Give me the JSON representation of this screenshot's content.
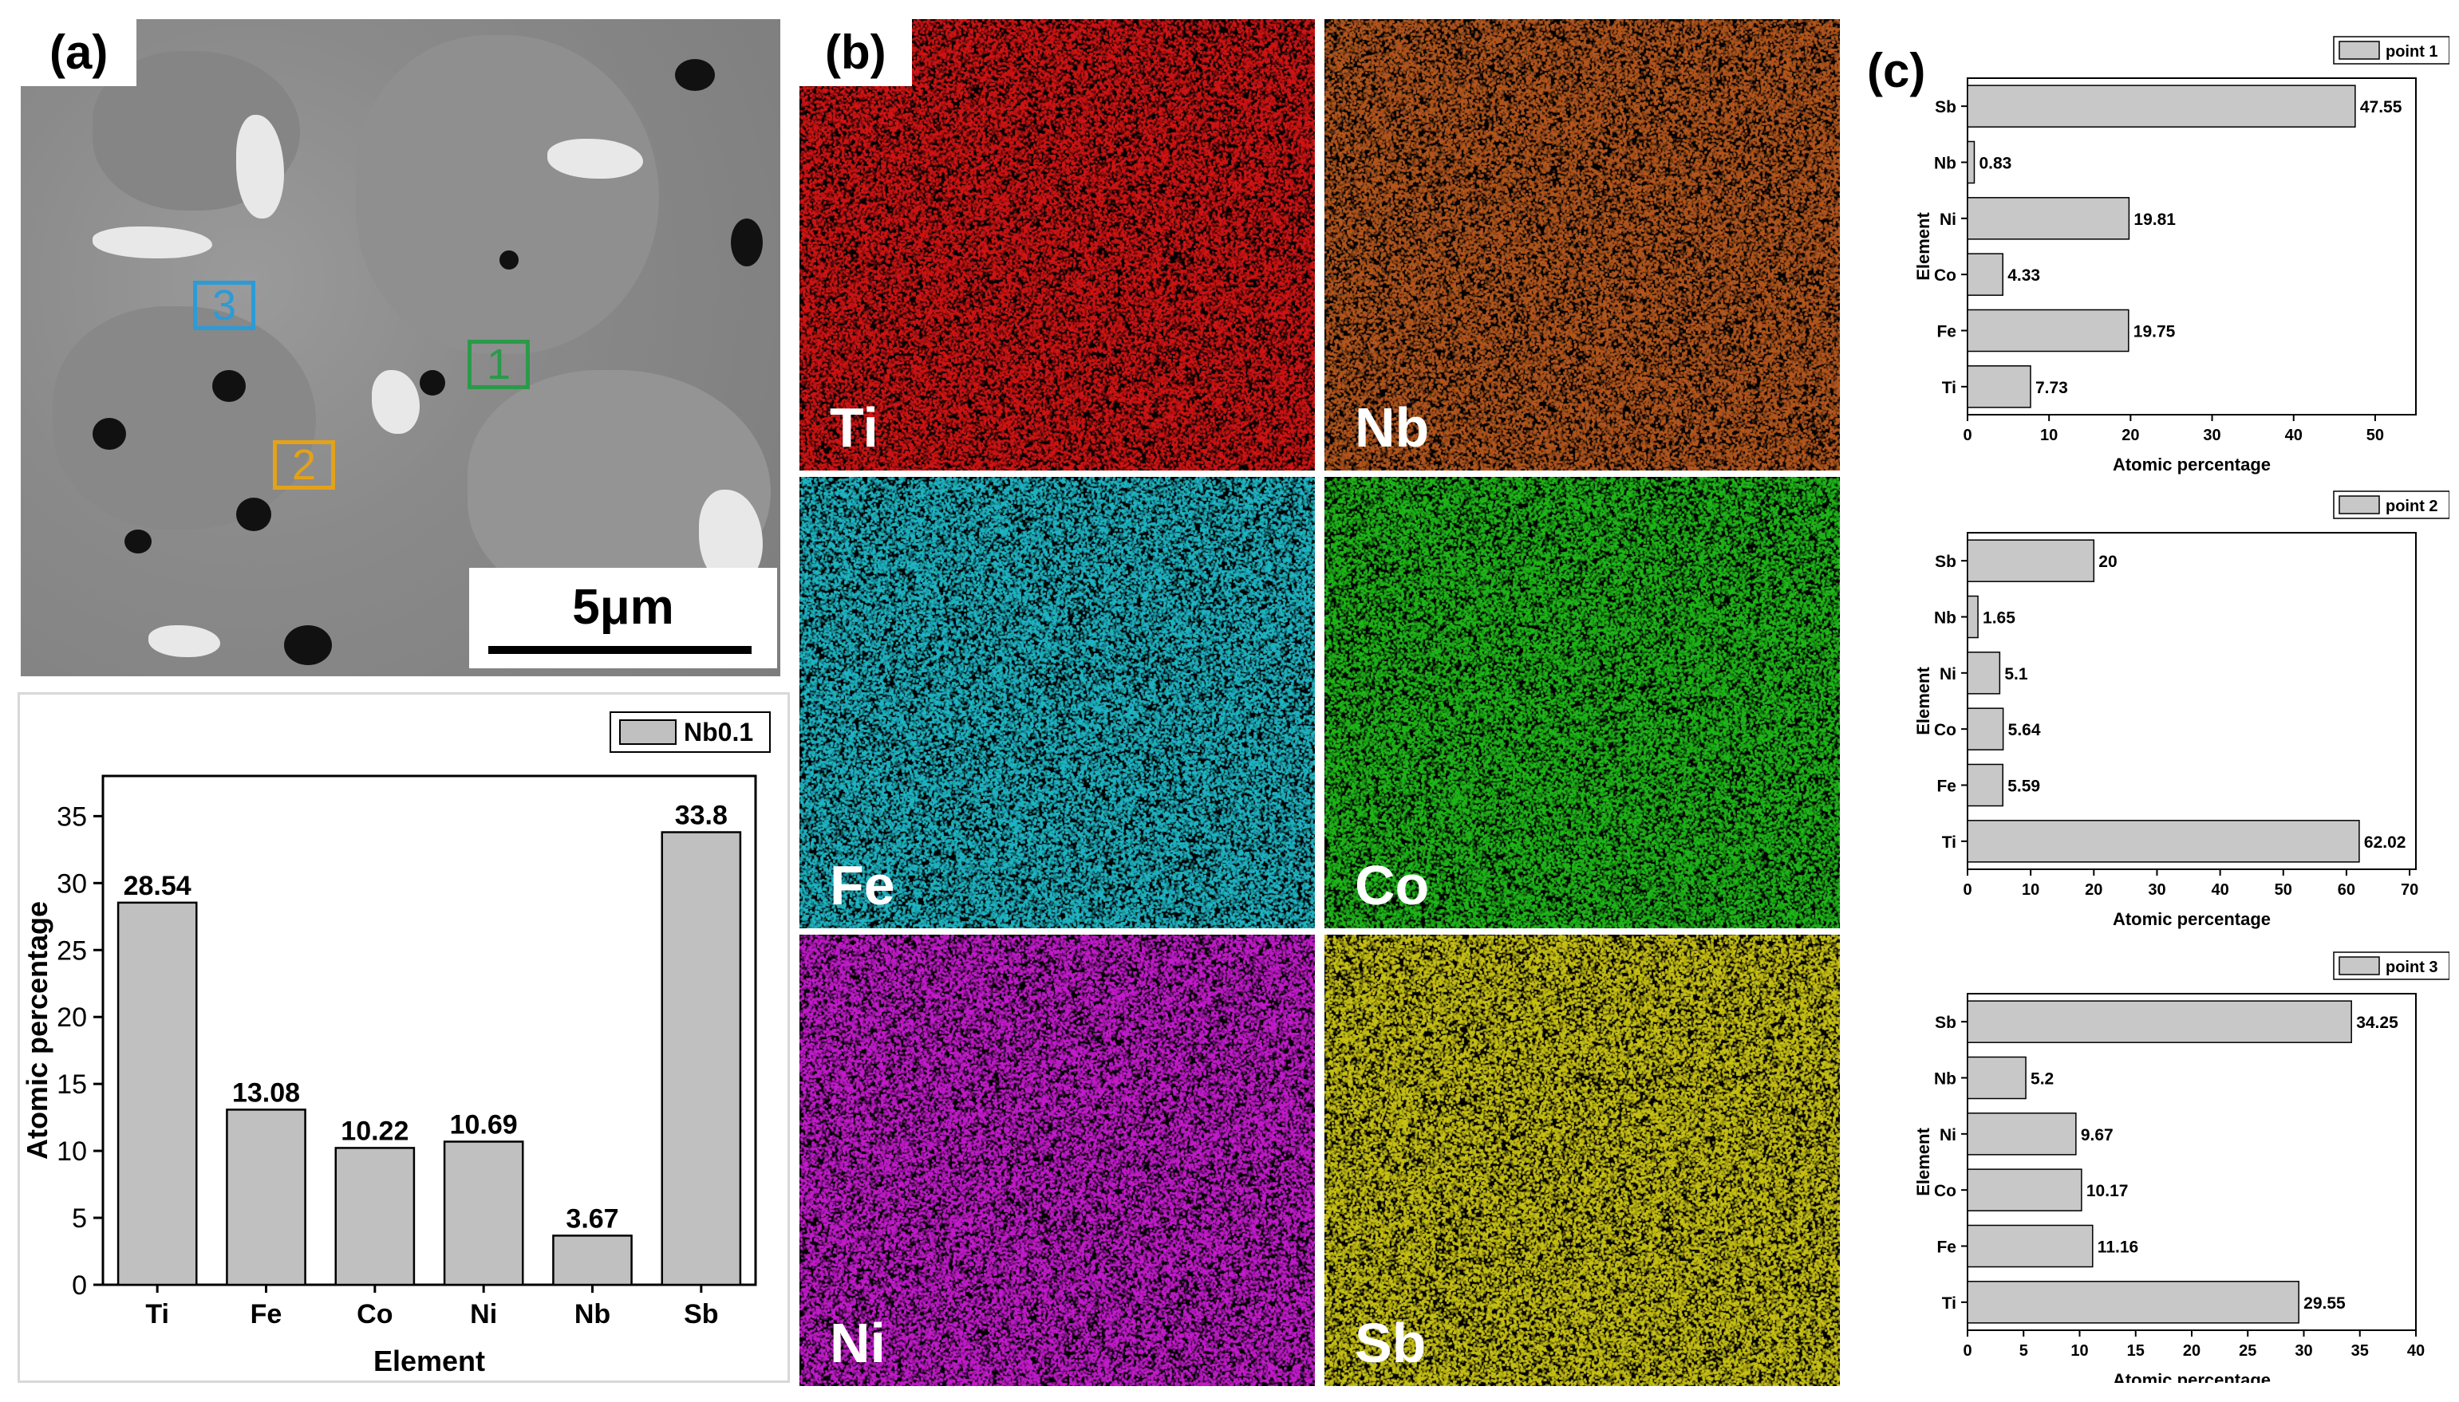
{
  "panel_a": {
    "label": "(a)",
    "scale_bar": "5μm",
    "points": [
      {
        "label": "3",
        "color": "#2c9bd6"
      },
      {
        "label": "1",
        "color": "#2a9a4a"
      },
      {
        "label": "2",
        "color": "#e3a21a"
      }
    ]
  },
  "panel_b": {
    "label": "(b)",
    "maps": [
      {
        "element": "Ti",
        "color": "#d21414"
      },
      {
        "element": "Nb",
        "color": "#b4571e"
      },
      {
        "element": "Fe",
        "color": "#1fb6c4"
      },
      {
        "element": "Co",
        "color": "#1fb81a"
      },
      {
        "element": "Ni",
        "color": "#c41ccc"
      },
      {
        "element": "Sb",
        "color": "#c8c214"
      }
    ]
  },
  "panel_c": {
    "label": "(c)"
  },
  "chart_data": [
    {
      "type": "bar",
      "legend": "Nb0.1",
      "categories": [
        "Ti",
        "Fe",
        "Co",
        "Ni",
        "Nb",
        "Sb"
      ],
      "values": [
        28.54,
        13.08,
        10.22,
        10.69,
        3.67,
        33.8
      ],
      "labels": [
        "28.54",
        "13.08",
        "10.22",
        "10.69",
        "3.67",
        "33.8"
      ],
      "xlabel": "Element",
      "ylabel": "Atomic percentage",
      "ylim": [
        0,
        38
      ],
      "yticks": [
        0,
        5,
        10,
        15,
        20,
        25,
        30,
        35
      ],
      "legend_position": "top-right"
    },
    {
      "type": "bar",
      "orientation": "horizontal",
      "legend": "point 1",
      "categories": [
        "Sb",
        "Nb",
        "Ni",
        "Co",
        "Fe",
        "Ti"
      ],
      "values": [
        47.55,
        0.83,
        19.81,
        4.33,
        19.75,
        7.73
      ],
      "labels": [
        "47.55",
        "0.83",
        "19.81",
        "4.33",
        "19.75",
        "7.73"
      ],
      "xlabel": "Atomic percentage",
      "ylabel": "Element",
      "xlim": [
        0,
        55
      ],
      "xticks": [
        0,
        10,
        20,
        30,
        40,
        50
      ],
      "legend_position": "top-right"
    },
    {
      "type": "bar",
      "orientation": "horizontal",
      "legend": "point 2",
      "categories": [
        "Sb",
        "Nb",
        "Ni",
        "Co",
        "Fe",
        "Ti"
      ],
      "values": [
        20,
        1.65,
        5.1,
        5.64,
        5.59,
        62.02
      ],
      "labels": [
        "20",
        "1.65",
        "5.1",
        "5.64",
        "5.59",
        "62.02"
      ],
      "xlabel": "Atomic percentage",
      "ylabel": "Element",
      "xlim": [
        0,
        71
      ],
      "xticks": [
        0,
        10,
        20,
        30,
        40,
        50,
        60,
        70
      ],
      "legend_position": "top-right"
    },
    {
      "type": "bar",
      "orientation": "horizontal",
      "legend": "point 3",
      "categories": [
        "Sb",
        "Nb",
        "Ni",
        "Co",
        "Fe",
        "Ti"
      ],
      "values": [
        34.25,
        5.2,
        9.67,
        10.17,
        11.16,
        29.55
      ],
      "labels": [
        "34.25",
        "5.2",
        "9.67",
        "10.17",
        "11.16",
        "29.55"
      ],
      "xlabel": "Atomic percentage",
      "ylabel": "Element",
      "xlim": [
        0,
        40
      ],
      "xticks": [
        0,
        5,
        10,
        15,
        20,
        25,
        30,
        35,
        40
      ],
      "legend_position": "top-right"
    }
  ]
}
